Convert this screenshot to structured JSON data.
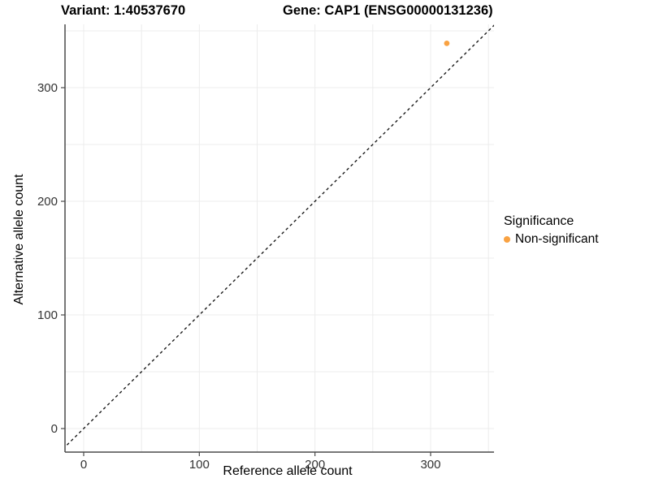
{
  "titles": {
    "variant": "Variant: 1:40537670",
    "gene": "Gene: CAP1 (ENSG00000131236)"
  },
  "chart_data": {
    "type": "scatter",
    "title": "Variant: 1:40537670  /  Gene: CAP1 (ENSG00000131236)",
    "xlabel": "Reference allele count",
    "ylabel": "Alternative allele count",
    "xlim": [
      -17,
      355
    ],
    "ylim": [
      -21,
      356
    ],
    "xticks": [
      0,
      100,
      200,
      300
    ],
    "yticks": [
      0,
      100,
      200,
      300
    ],
    "grid_values": [
      0,
      50,
      100,
      150,
      200,
      250,
      300,
      350
    ],
    "grid": true,
    "points": [
      {
        "x": 314,
        "y": 339,
        "series": "Non-significant"
      }
    ],
    "reference_line": {
      "kind": "diagonal y=x",
      "style": "dashed",
      "color": "#1a1a1a"
    },
    "legend_position": "right",
    "colors": {
      "non_significant": "#F9A242",
      "grid": "#ECECEC",
      "axis_line": "#4a4a4a",
      "tick_label": "#333333"
    }
  },
  "legend": {
    "title": "Significance",
    "items": [
      {
        "label": "Non-significant",
        "color": "#F9A242"
      }
    ]
  }
}
